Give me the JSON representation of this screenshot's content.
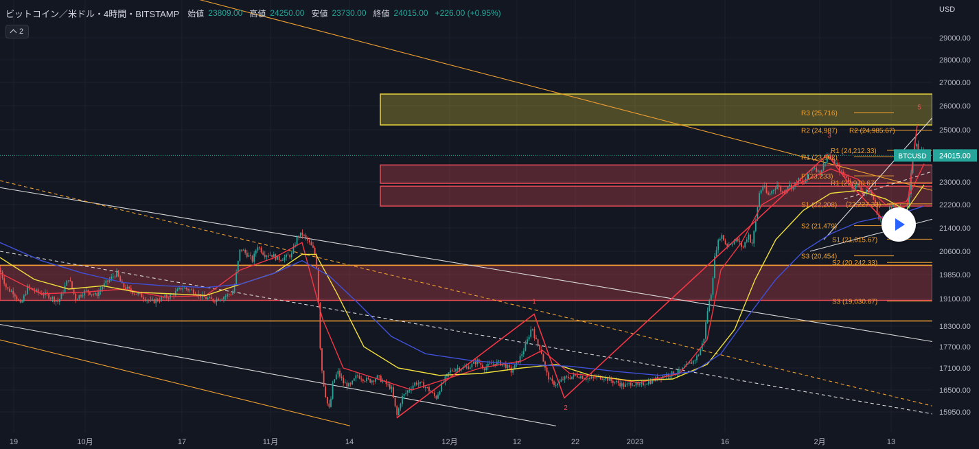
{
  "header": {
    "symbol": "ビットコイン／米ドル・4時間・BITSTAMP",
    "open_label": "始値",
    "open": "23809.00",
    "high_label": "高値",
    "high": "24250.00",
    "low_label": "安値",
    "low": "23730.00",
    "close_label": "終値",
    "close": "24015.00",
    "change": "+226.00 (+0.95%)"
  },
  "indicator_toggle": {
    "count": "2"
  },
  "currency": "USD",
  "colors": {
    "background": "#131722",
    "up": "#26a69a",
    "down": "#ef5350",
    "zone_red": "#e24a55",
    "zone_yellow": "#e8d33c",
    "orange": "#f0a030",
    "ma_red": "#f23645",
    "ma_yellow": "#f2e03c",
    "ma_blue": "#3f51d8",
    "white": "#ffffff"
  },
  "chart_data": {
    "type": "candlestick",
    "symbol": "BTCUSD",
    "ylim": [
      15750,
      29700
    ],
    "y_ticks": [
      "29000.00",
      "28000.00",
      "27000.00",
      "26000.00",
      "25000.00",
      "23000.00",
      "22200.00",
      "21400.00",
      "20600.00",
      "19850.00",
      "19100.00",
      "18300.00",
      "17700.00",
      "17100.00",
      "16500.00",
      "15950.00"
    ],
    "x_ticks": [
      "19",
      "10月",
      "17",
      "11月",
      "14",
      "12月",
      "12",
      "22",
      "2023",
      "16",
      "2月",
      "13"
    ],
    "last_price": "24015.00",
    "last_price_label": "BTCUSD",
    "price_path": [
      [
        0,
        20000
      ],
      [
        10,
        19400
      ],
      [
        20,
        19300
      ],
      [
        30,
        18900
      ],
      [
        40,
        19450
      ],
      [
        55,
        19300
      ],
      [
        70,
        19200
      ],
      [
        85,
        19000
      ],
      [
        100,
        19750
      ],
      [
        110,
        19100
      ],
      [
        125,
        19350
      ],
      [
        140,
        19200
      ],
      [
        150,
        19500
      ],
      [
        160,
        19700
      ],
      [
        170,
        19900
      ],
      [
        178,
        19500
      ],
      [
        190,
        19350
      ],
      [
        205,
        19200
      ],
      [
        220,
        19000
      ],
      [
        235,
        19100
      ],
      [
        250,
        19200
      ],
      [
        265,
        19450
      ],
      [
        280,
        19350
      ],
      [
        295,
        19150
      ],
      [
        310,
        19050
      ],
      [
        325,
        19150
      ],
      [
        340,
        19300
      ],
      [
        350,
        20700
      ],
      [
        360,
        20500
      ],
      [
        368,
        20300
      ],
      [
        375,
        20800
      ],
      [
        385,
        20500
      ],
      [
        395,
        20500
      ],
      [
        405,
        20350
      ],
      [
        415,
        20400
      ],
      [
        425,
        20500
      ],
      [
        433,
        21100
      ],
      [
        440,
        21200
      ],
      [
        450,
        20900
      ],
      [
        458,
        20600
      ],
      [
        462,
        20000
      ],
      [
        466,
        17800
      ],
      [
        470,
        16800
      ],
      [
        476,
        16200
      ],
      [
        480,
        16000
      ],
      [
        485,
        16700
      ],
      [
        492,
        17000
      ],
      [
        500,
        16700
      ],
      [
        510,
        16600
      ],
      [
        520,
        16900
      ],
      [
        530,
        16800
      ],
      [
        540,
        16750
      ],
      [
        550,
        16850
      ],
      [
        560,
        16700
      ],
      [
        570,
        16550
      ],
      [
        578,
        15850
      ],
      [
        585,
        16300
      ],
      [
        595,
        16500
      ],
      [
        605,
        16700
      ],
      [
        615,
        16650
      ],
      [
        625,
        16500
      ],
      [
        635,
        16300
      ],
      [
        645,
        16700
      ],
      [
        655,
        17000
      ],
      [
        665,
        17100
      ],
      [
        675,
        17100
      ],
      [
        685,
        17150
      ],
      [
        695,
        17300
      ],
      [
        705,
        17100
      ],
      [
        715,
        17200
      ],
      [
        725,
        17250
      ],
      [
        735,
        17200
      ],
      [
        745,
        17000
      ],
      [
        755,
        17300
      ],
      [
        765,
        17700
      ],
      [
        775,
        18300
      ],
      [
        780,
        17900
      ],
      [
        788,
        17600
      ],
      [
        795,
        17000
      ],
      [
        803,
        16700
      ],
      [
        812,
        16650
      ],
      [
        820,
        16800
      ],
      [
        830,
        16850
      ],
      [
        840,
        16900
      ],
      [
        850,
        16850
      ],
      [
        860,
        16800
      ],
      [
        870,
        16850
      ],
      [
        880,
        16850
      ],
      [
        890,
        16750
      ],
      [
        900,
        16700
      ],
      [
        910,
        16600
      ],
      [
        920,
        16700
      ],
      [
        930,
        16600
      ],
      [
        940,
        16700
      ],
      [
        950,
        16750
      ],
      [
        960,
        16850
      ],
      [
        970,
        16900
      ],
      [
        980,
        16950
      ],
      [
        990,
        17000
      ],
      [
        1000,
        17150
      ],
      [
        1010,
        17300
      ],
      [
        1018,
        17500
      ],
      [
        1025,
        17900
      ],
      [
        1030,
        18700
      ],
      [
        1036,
        19300
      ],
      [
        1042,
        20600
      ],
      [
        1050,
        21200
      ],
      [
        1058,
        20800
      ],
      [
        1066,
        20900
      ],
      [
        1074,
        21000
      ],
      [
        1082,
        20700
      ],
      [
        1090,
        21200
      ],
      [
        1095,
        20800
      ],
      [
        1100,
        21500
      ],
      [
        1106,
        22600
      ],
      [
        1112,
        22900
      ],
      [
        1118,
        22500
      ],
      [
        1125,
        22700
      ],
      [
        1132,
        22900
      ],
      [
        1140,
        22600
      ],
      [
        1148,
        22900
      ],
      [
        1155,
        22800
      ],
      [
        1162,
        23100
      ],
      [
        1170,
        22900
      ],
      [
        1178,
        23400
      ],
      [
        1186,
        23600
      ],
      [
        1194,
        23300
      ],
      [
        1200,
        23700
      ],
      [
        1206,
        24100
      ],
      [
        1212,
        23800
      ],
      [
        1218,
        23700
      ],
      [
        1226,
        23300
      ],
      [
        1234,
        23200
      ],
      [
        1242,
        22800
      ],
      [
        1250,
        22900
      ],
      [
        1258,
        22600
      ],
      [
        1266,
        22700
      ],
      [
        1274,
        22300
      ],
      [
        1280,
        21700
      ],
      [
        1288,
        21700
      ],
      [
        1296,
        22100
      ],
      [
        1304,
        22100
      ],
      [
        1312,
        22000
      ],
      [
        1318,
        21900
      ],
      [
        1324,
        22400
      ],
      [
        1330,
        24100
      ],
      [
        1334,
        24700
      ],
      [
        1338,
        23900
      ],
      [
        1342,
        24200
      ],
      [
        1346,
        24000
      ]
    ],
    "moving_averages": [
      {
        "name": "MA-fast",
        "color": "#f23645",
        "points": [
          [
            0,
            19900
          ],
          [
            60,
            19250
          ],
          [
            120,
            19300
          ],
          [
            180,
            19400
          ],
          [
            240,
            19150
          ],
          [
            300,
            19200
          ],
          [
            350,
            20000
          ],
          [
            400,
            20400
          ],
          [
            440,
            20900
          ],
          [
            470,
            18500
          ],
          [
            500,
            17100
          ],
          [
            550,
            16800
          ],
          [
            600,
            16500
          ],
          [
            650,
            16800
          ],
          [
            700,
            17100
          ],
          [
            760,
            17300
          ],
          [
            790,
            17600
          ],
          [
            830,
            16950
          ],
          [
            880,
            16850
          ],
          [
            930,
            16700
          ],
          [
            990,
            16950
          ],
          [
            1030,
            17900
          ],
          [
            1050,
            20000
          ],
          [
            1080,
            20900
          ],
          [
            1110,
            22200
          ],
          [
            1160,
            22900
          ],
          [
            1210,
            23500
          ],
          [
            1250,
            23100
          ],
          [
            1290,
            22200
          ],
          [
            1320,
            22300
          ],
          [
            1346,
            23700
          ]
        ]
      },
      {
        "name": "MA-medium",
        "color": "#f2e03c",
        "points": [
          [
            0,
            20400
          ],
          [
            50,
            19700
          ],
          [
            100,
            19400
          ],
          [
            150,
            19500
          ],
          [
            200,
            19300
          ],
          [
            250,
            19250
          ],
          [
            300,
            19200
          ],
          [
            350,
            19550
          ],
          [
            400,
            19900
          ],
          [
            440,
            20500
          ],
          [
            460,
            20500
          ],
          [
            490,
            19300
          ],
          [
            530,
            17700
          ],
          [
            580,
            17100
          ],
          [
            640,
            16900
          ],
          [
            700,
            16950
          ],
          [
            760,
            17100
          ],
          [
            810,
            17200
          ],
          [
            860,
            16900
          ],
          [
            920,
            16750
          ],
          [
            980,
            16800
          ],
          [
            1030,
            17200
          ],
          [
            1070,
            18200
          ],
          [
            1100,
            19700
          ],
          [
            1130,
            21000
          ],
          [
            1170,
            22000
          ],
          [
            1210,
            22600
          ],
          [
            1250,
            22700
          ],
          [
            1290,
            22400
          ],
          [
            1320,
            22000
          ],
          [
            1346,
            22900
          ]
        ]
      },
      {
        "name": "MA-slow",
        "color": "#3f51d8",
        "points": [
          [
            0,
            20900
          ],
          [
            60,
            20300
          ],
          [
            120,
            19900
          ],
          [
            180,
            19600
          ],
          [
            240,
            19500
          ],
          [
            300,
            19450
          ],
          [
            350,
            19550
          ],
          [
            400,
            19900
          ],
          [
            440,
            20300
          ],
          [
            480,
            19800
          ],
          [
            520,
            19000
          ],
          [
            570,
            18000
          ],
          [
            620,
            17500
          ],
          [
            690,
            17300
          ],
          [
            760,
            17200
          ],
          [
            830,
            17150
          ],
          [
            900,
            17000
          ],
          [
            960,
            16900
          ],
          [
            1010,
            17000
          ],
          [
            1050,
            17500
          ],
          [
            1090,
            18600
          ],
          [
            1130,
            19700
          ],
          [
            1170,
            20600
          ],
          [
            1210,
            21200
          ],
          [
            1250,
            21600
          ],
          [
            1290,
            21800
          ],
          [
            1320,
            21950
          ],
          [
            1346,
            22150
          ]
        ]
      }
    ],
    "zones": [
      {
        "name": "upper-supply-zone",
        "color": "yellow",
        "x0": 554,
        "x1": 1358,
        "y0": 25200,
        "y1": 26500
      },
      {
        "name": "upper-red-zone",
        "color": "red",
        "x0": 554,
        "x1": 1358,
        "y0": 22950,
        "y1": 23650
      },
      {
        "name": "mid-red-zone",
        "color": "red",
        "x0": 554,
        "x1": 1358,
        "y0": 22150,
        "y1": 22850
      },
      {
        "name": "lower-red-zone",
        "color": "red",
        "x0": 0,
        "x1": 1358,
        "y0": 19050,
        "y1": 20150
      }
    ],
    "horizontal_lines": [
      {
        "price": 20150,
        "x0": 0,
        "x1": 1358,
        "color": "orange"
      },
      {
        "price": 18450,
        "x0": 0,
        "x1": 1358,
        "color": "orange"
      }
    ],
    "trend_lines": [
      {
        "color": "orange",
        "style": "solid",
        "from": [
          0,
          33100
        ],
        "to": [
          1358,
          22700
        ]
      },
      {
        "color": "white",
        "style": "solid",
        "from": [
          0,
          22800
        ],
        "to": [
          1358,
          17850
        ]
      },
      {
        "color": "white",
        "style": "solid",
        "from": [
          0,
          18350
        ],
        "to": [
          810,
          15600
        ]
      },
      {
        "color": "orange",
        "style": "solid",
        "from": [
          0,
          17900
        ],
        "to": [
          510,
          15600
        ]
      },
      {
        "color": "white",
        "style": "dashed",
        "from": [
          0,
          20600
        ],
        "to": [
          1358,
          15900
        ]
      },
      {
        "color": "orange",
        "style": "dashed",
        "from": [
          0,
          23050
        ],
        "to": [
          1358,
          16100
        ]
      },
      {
        "color": "white",
        "style": "solid",
        "from": [
          1200,
          21000
        ],
        "to": [
          1358,
          25500
        ]
      },
      {
        "color": "white",
        "style": "dashed",
        "from": [
          1230,
          22400
        ],
        "to": [
          1358,
          23400
        ]
      },
      {
        "color": "white",
        "style": "solid",
        "from": [
          1180,
          20600
        ],
        "to": [
          1358,
          21700
        ]
      }
    ],
    "wave_path": [
      [
        578,
        15800
      ],
      [
        778,
        18650
      ],
      [
        822,
        16300
      ],
      [
        1205,
        24050
      ],
      [
        1235,
        23000
      ],
      [
        1288,
        21650
      ],
      [
        1322,
        22200
      ],
      [
        1336,
        25200
      ]
    ],
    "wave_labels": [
      {
        "text": "1",
        "x": 778,
        "price": 18950
      },
      {
        "text": "2",
        "x": 824,
        "price": 16000
      },
      {
        "text": "3",
        "x": 1208,
        "price": 24700
      },
      {
        "text": "5",
        "x": 1339,
        "price": 25850
      }
    ],
    "pivot_levels": [
      {
        "label": "R3 (25,716)",
        "price": 25716,
        "x_label": 1167,
        "x0": 1244,
        "x1": 1302
      },
      {
        "label": "R2 (24,987)",
        "price": 24987,
        "x_label": 1167,
        "x0": 1244,
        "x1": 1358
      },
      {
        "label": "R2 (24,985.67)",
        "price": 24985,
        "x_label": 1237,
        "x0": 1292,
        "x1": 1358
      },
      {
        "label": "R1 (24,212.33)",
        "price": 24212,
        "x_label": 1210,
        "x0": 1292,
        "x1": 1358
      },
      {
        "label": "R1 (23,962)",
        "price": 23962,
        "x_label": 1167,
        "x0": 1244,
        "x1": 1302
      },
      {
        "label": "P (23,233)",
        "price": 23233,
        "x_label": 1167,
        "x0": 1244,
        "x1": 1302
      },
      {
        "label": "R1 (22,970.67)",
        "price": 22970,
        "x_label": 1210,
        "x0": 1292,
        "x1": 1358
      },
      {
        "label": "S1 (22,208)",
        "price": 22208,
        "x_label": 1167,
        "x0": 1244,
        "x1": 1302
      },
      {
        "label": "(22,227.33)",
        "price": 22227,
        "x_label": 1232,
        "x0": 1292,
        "x1": 1358
      },
      {
        "label": "S2 (21,479)",
        "price": 21479,
        "x_label": 1167,
        "x0": 1244,
        "x1": 1302
      },
      {
        "label": "S1 (21,015.67)",
        "price": 21015,
        "x_label": 1212,
        "x0": 1292,
        "x1": 1358
      },
      {
        "label": "S3 (20,454)",
        "price": 20454,
        "x_label": 1167,
        "x0": 1244,
        "x1": 1302
      },
      {
        "label": "S2 (20,242.33)",
        "price": 20242,
        "x_label": 1212,
        "x0": 1292,
        "x1": 1358
      },
      {
        "label": "S3 (19,030.67)",
        "price": 19030,
        "x_label": 1212,
        "x0": 1292,
        "x1": 1358
      }
    ]
  }
}
